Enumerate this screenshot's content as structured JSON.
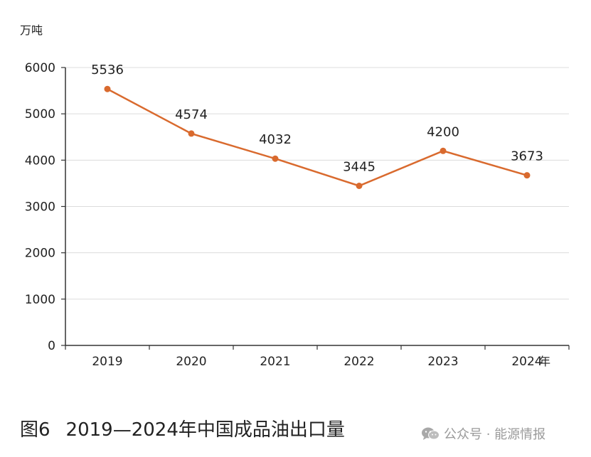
{
  "chart_data": {
    "type": "line",
    "y_unit_label": "万吨",
    "x_unit_label": "年",
    "categories": [
      "2019",
      "2020",
      "2021",
      "2022",
      "2023",
      "2024"
    ],
    "values": [
      5536,
      4574,
      4032,
      3445,
      4200,
      3673
    ],
    "data_labels": [
      "5536",
      "4574",
      "4032",
      "3445",
      "4200",
      "3673"
    ],
    "y_ticks": [
      "0",
      "1000",
      "2000",
      "3000",
      "4000",
      "5000",
      "6000"
    ],
    "ylim": [
      0,
      6000
    ],
    "grid": true,
    "series_color": "#d96a2e"
  },
  "caption": {
    "figure_number": "图6",
    "title": "2019—2024年中国成品油出口量"
  },
  "watermark": {
    "text": "公众号 · 能源情报",
    "icon": "wechat-icon"
  }
}
